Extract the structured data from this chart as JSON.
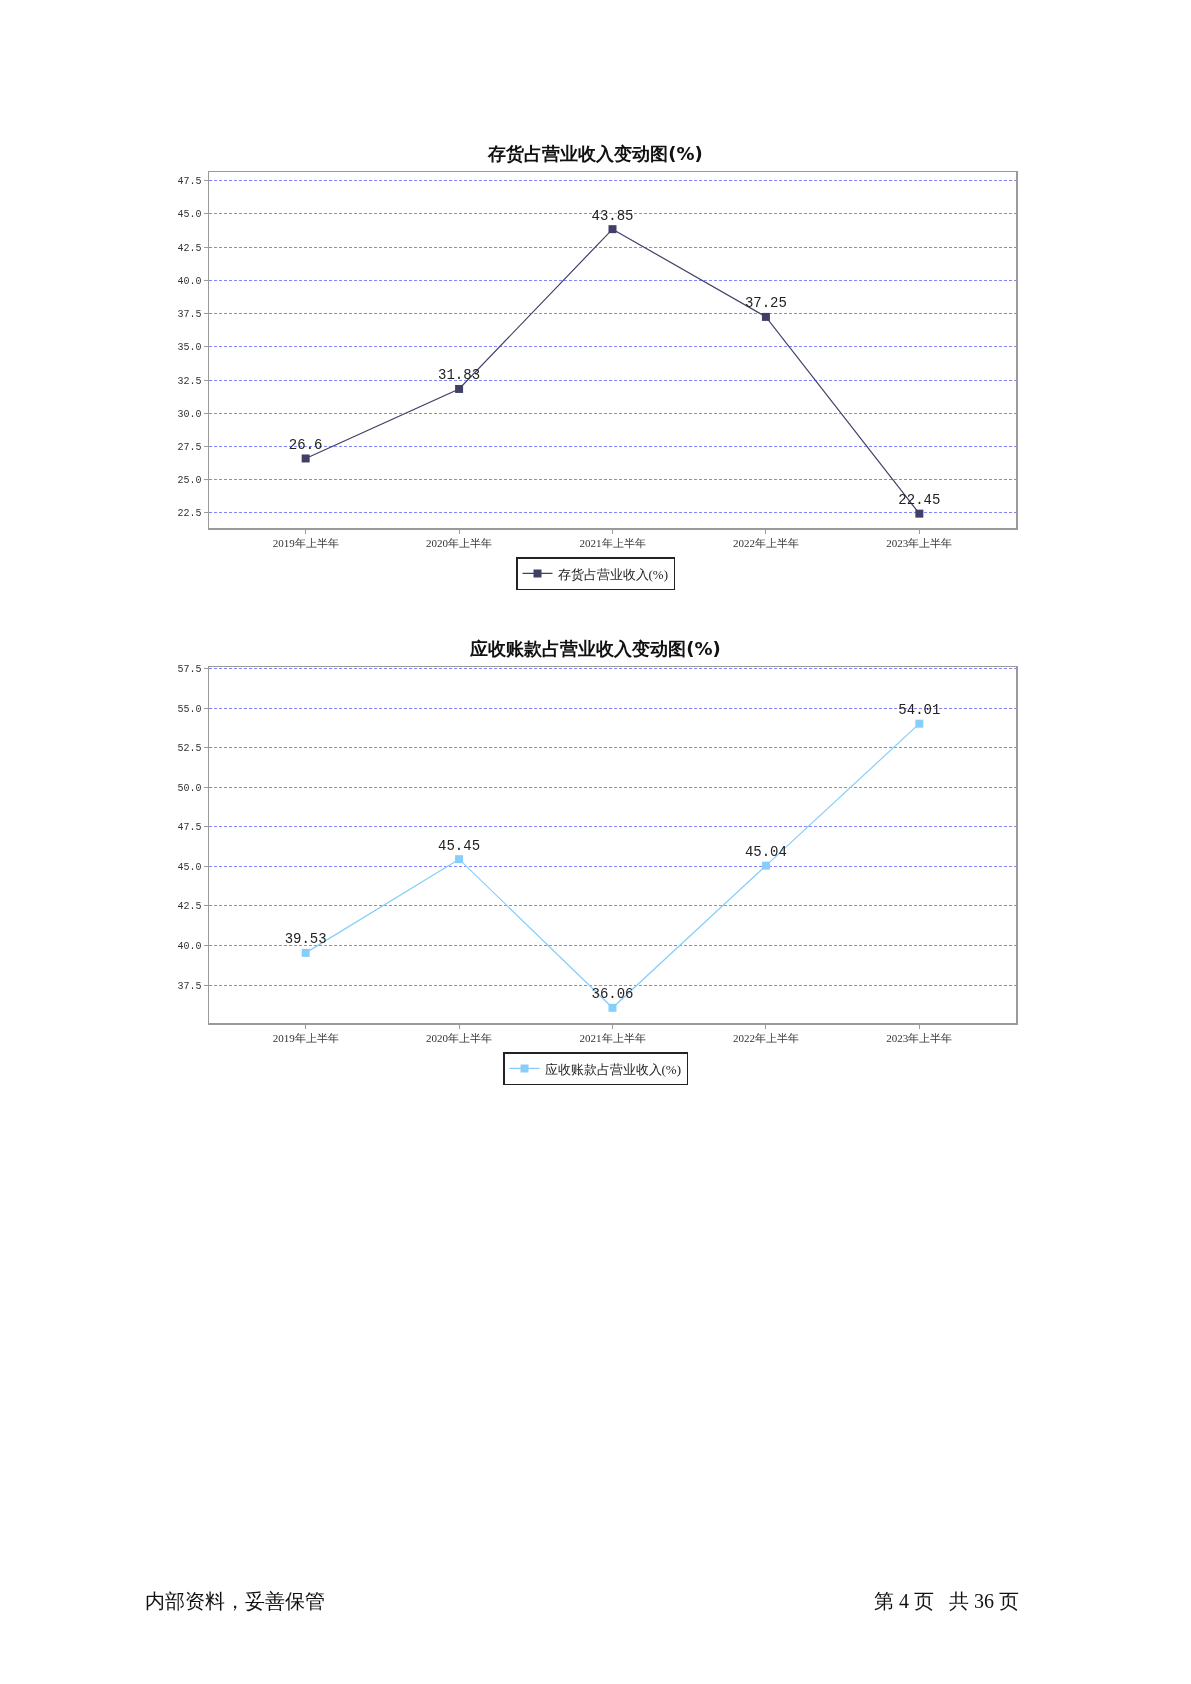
{
  "chart_data": [
    {
      "type": "line",
      "title": "存货占营业收入变动图(%)",
      "categories": [
        "2019年上半年",
        "2020年上半年",
        "2021年上半年",
        "2022年上半年",
        "2023年上半年"
      ],
      "series": [
        {
          "name": "存货占营业收入(%)",
          "color": "#404066",
          "values": [
            26.6,
            31.83,
            43.85,
            37.25,
            22.45
          ]
        }
      ],
      "ylim": [
        21.37,
        48.15
      ],
      "yticks": [
        22.5,
        {
          "value": 25,
          "label": "25.0"
        },
        27.5,
        {
          "value": 30,
          "label": "30.0"
        },
        32.5,
        {
          "value": 35,
          "label": "35.0"
        },
        37.5,
        {
          "value": 40,
          "label": "40.0"
        },
        42.5,
        {
          "value": 45,
          "label": "45.0"
        },
        47.5
      ],
      "grid": "y",
      "legend": "bottom",
      "marker": "square",
      "line_style": "solid",
      "data_labels": true
    },
    {
      "type": "line",
      "title": "应收账款占营业收入变动图(%)",
      "categories": [
        "2019年上半年",
        "2020年上半年",
        "2021年上半年",
        "2022年上半年",
        "2023年上半年"
      ],
      "series": [
        {
          "name": "应收账款占营业收入(%)",
          "color": "#87cefa",
          "values": [
            39.53,
            45.45,
            36.06,
            45.04,
            54.01
          ]
        }
      ],
      "ylim": [
        35.1,
        57.59
      ],
      "yticks": [
        37.5,
        {
          "value": 40,
          "label": "40.0"
        },
        42.5,
        {
          "value": 45,
          "label": "45.0"
        },
        47.5,
        {
          "value": 50,
          "label": "50.0"
        },
        52.5,
        {
          "value": 55,
          "label": "55.0"
        },
        57.5
      ],
      "grid": "y",
      "legend": "bottom",
      "marker": "square",
      "line_style": "solid",
      "data_labels": true,
      "annotations": [
        "内部资料，妥善保管",
        "第 4 页   共 36 页"
      ]
    }
  ]
}
